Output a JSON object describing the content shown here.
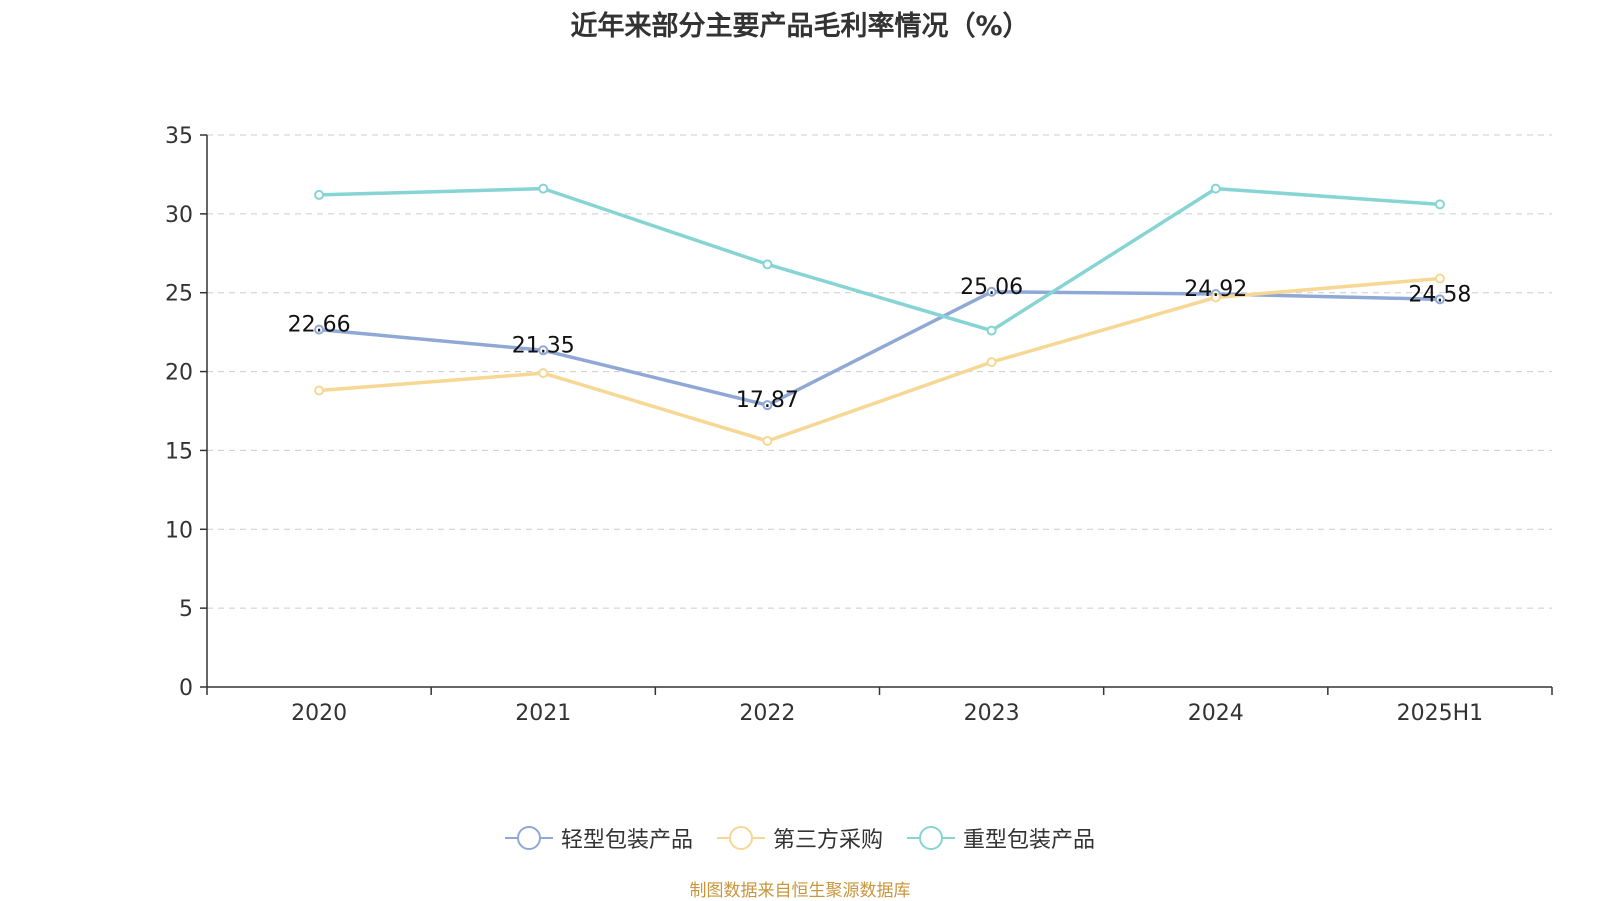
{
  "chart_data": {
    "type": "line",
    "title": "近年来部分主要产品毛利率情况（%）",
    "categories": [
      "2020",
      "2021",
      "2022",
      "2023",
      "2024",
      "2025H1"
    ],
    "ylim": [
      0,
      35
    ],
    "yticks": [
      "0",
      "5",
      "10",
      "15",
      "20",
      "25",
      "30",
      "35"
    ],
    "grid": true,
    "legend_position": "bottom",
    "series": [
      {
        "name": "轻型包装产品",
        "color": "#8fa8d6",
        "values": [
          22.66,
          21.35,
          17.87,
          25.06,
          24.92,
          24.58
        ],
        "labels": [
          "22.66",
          "21.35",
          "17.87",
          "25.06",
          "24.92",
          "24.58"
        ]
      },
      {
        "name": "第三方采购",
        "color": "#f7d794",
        "values": [
          18.8,
          19.9,
          15.6,
          20.6,
          24.7,
          25.9
        ]
      },
      {
        "name": "重型包装产品",
        "color": "#86d4d4",
        "values": [
          31.2,
          31.6,
          26.8,
          22.6,
          31.6,
          30.6
        ]
      }
    ]
  },
  "source_note": "制图数据来自恒生聚源数据库"
}
